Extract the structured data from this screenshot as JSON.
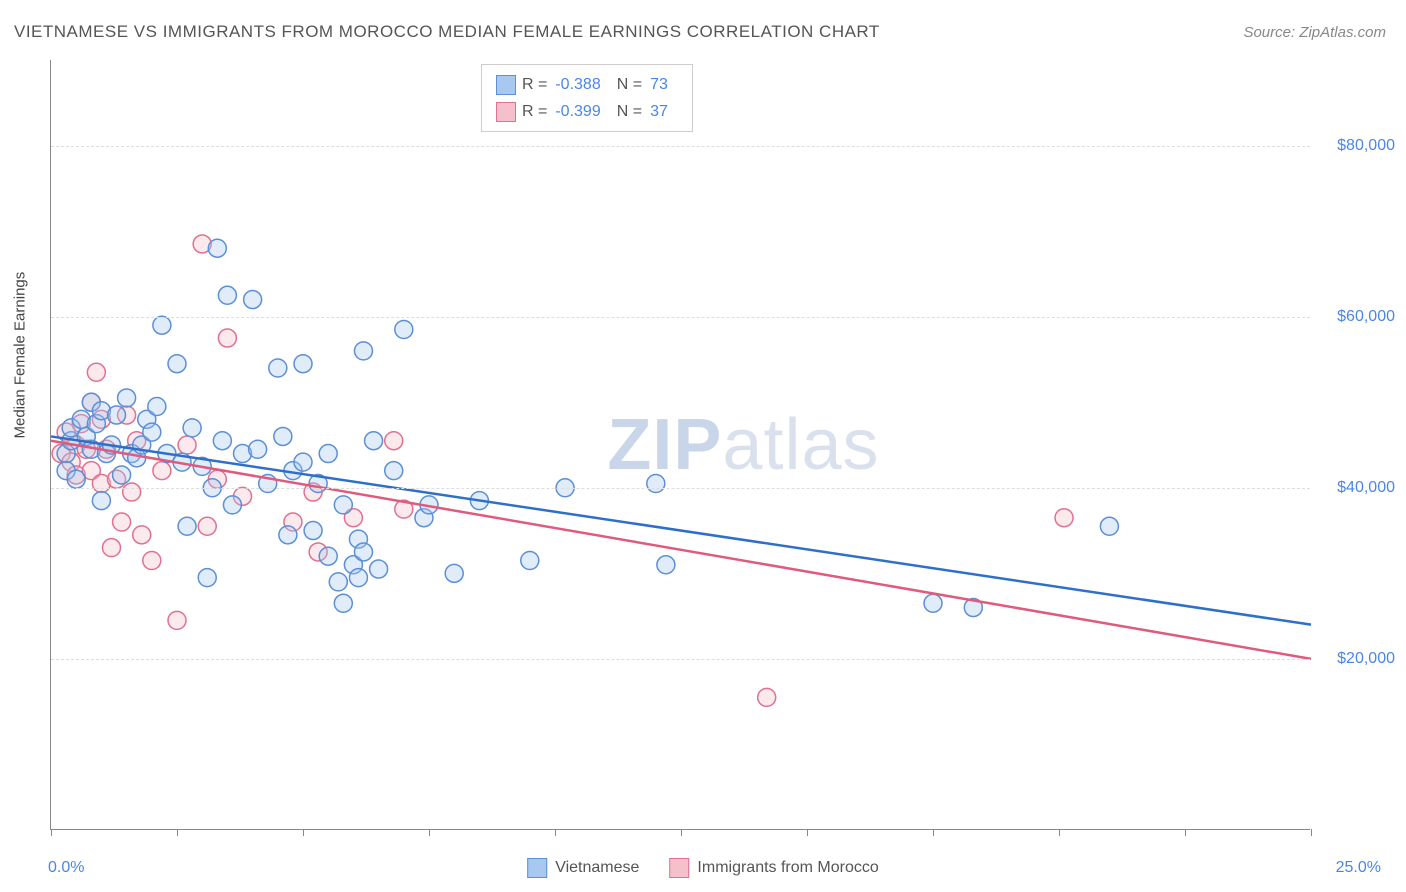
{
  "title": "VIETNAMESE VS IMMIGRANTS FROM MOROCCO MEDIAN FEMALE EARNINGS CORRELATION CHART",
  "source_label": "Source: ZipAtlas.com",
  "watermark_text_bold": "ZIP",
  "watermark_text_light": "atlas",
  "y_axis_label": "Median Female Earnings",
  "chart": {
    "type": "scatter",
    "xlim": [
      0,
      25
    ],
    "ylim": [
      0,
      90000
    ],
    "x_tick_positions": [
      0,
      2.5,
      5,
      7.5,
      10,
      12.5,
      15,
      17.5,
      20,
      22.5,
      25
    ],
    "x_min_label": "0.0%",
    "x_max_label": "25.0%",
    "y_gridlines": [
      20000,
      40000,
      60000,
      80000
    ],
    "y_tick_labels": [
      "$20,000",
      "$40,000",
      "$60,000",
      "$80,000"
    ],
    "grid_color": "#dddddd",
    "background_color": "#ffffff",
    "axis_color": "#888888",
    "label_fontsize": 15,
    "tick_label_color": "#4a86e8",
    "marker_radius": 9,
    "marker_fill_opacity": 0.35,
    "marker_stroke_width": 1.5,
    "trendline_width": 2.5,
    "series": [
      {
        "name": "Vietnamese",
        "color_fill": "#a8c8f0",
        "color_stroke": "#5b8fd6",
        "trend_color": "#2e6fc9",
        "R": "-0.388",
        "N": "73",
        "trend_start": [
          0,
          46000
        ],
        "trend_end": [
          25,
          24000
        ],
        "points": [
          [
            0.3,
            44000
          ],
          [
            0.3,
            42000
          ],
          [
            0.4,
            45500
          ],
          [
            0.4,
            47000
          ],
          [
            0.5,
            41000
          ],
          [
            0.6,
            48000
          ],
          [
            0.7,
            46000
          ],
          [
            0.8,
            44500
          ],
          [
            0.8,
            50000
          ],
          [
            0.9,
            47500
          ],
          [
            1.0,
            38500
          ],
          [
            1.0,
            49000
          ],
          [
            1.1,
            44000
          ],
          [
            1.2,
            45000
          ],
          [
            1.3,
            48500
          ],
          [
            1.4,
            41500
          ],
          [
            1.5,
            50500
          ],
          [
            1.6,
            44000
          ],
          [
            1.7,
            43500
          ],
          [
            1.8,
            45000
          ],
          [
            1.9,
            48000
          ],
          [
            2.0,
            46500
          ],
          [
            2.1,
            49500
          ],
          [
            2.2,
            59000
          ],
          [
            2.3,
            44000
          ],
          [
            2.5,
            54500
          ],
          [
            2.6,
            43000
          ],
          [
            2.7,
            35500
          ],
          [
            2.8,
            47000
          ],
          [
            3.0,
            42500
          ],
          [
            3.1,
            29500
          ],
          [
            3.2,
            40000
          ],
          [
            3.3,
            68000
          ],
          [
            3.4,
            45500
          ],
          [
            3.5,
            62500
          ],
          [
            3.6,
            38000
          ],
          [
            3.8,
            44000
          ],
          [
            4.0,
            62000
          ],
          [
            4.1,
            44500
          ],
          [
            4.3,
            40500
          ],
          [
            4.5,
            54000
          ],
          [
            4.6,
            46000
          ],
          [
            4.7,
            34500
          ],
          [
            4.8,
            42000
          ],
          [
            5.0,
            43000
          ],
          [
            5.0,
            54500
          ],
          [
            5.2,
            35000
          ],
          [
            5.3,
            40500
          ],
          [
            5.5,
            44000
          ],
          [
            5.5,
            32000
          ],
          [
            5.7,
            29000
          ],
          [
            5.8,
            38000
          ],
          [
            5.8,
            26500
          ],
          [
            6.0,
            31000
          ],
          [
            6.1,
            34000
          ],
          [
            6.1,
            29500
          ],
          [
            6.2,
            32500
          ],
          [
            6.2,
            56000
          ],
          [
            6.4,
            45500
          ],
          [
            6.5,
            30500
          ],
          [
            6.8,
            42000
          ],
          [
            7.0,
            58500
          ],
          [
            7.4,
            36500
          ],
          [
            7.5,
            38000
          ],
          [
            8.0,
            30000
          ],
          [
            8.5,
            38500
          ],
          [
            9.5,
            31500
          ],
          [
            10.2,
            40000
          ],
          [
            12.0,
            40500
          ],
          [
            12.2,
            31000
          ],
          [
            17.5,
            26500
          ],
          [
            18.3,
            26000
          ],
          [
            21.0,
            35500
          ]
        ]
      },
      {
        "name": "Immigrants from Morocco",
        "color_fill": "#f4c0cc",
        "color_stroke": "#e0718f",
        "trend_color": "#e05a7d",
        "R": "-0.399",
        "N": "37",
        "trend_start": [
          0,
          45500
        ],
        "trend_end": [
          25,
          20000
        ],
        "points": [
          [
            0.2,
            44000
          ],
          [
            0.3,
            46500
          ],
          [
            0.4,
            43000
          ],
          [
            0.5,
            45000
          ],
          [
            0.5,
            41500
          ],
          [
            0.6,
            47500
          ],
          [
            0.7,
            44500
          ],
          [
            0.8,
            42000
          ],
          [
            0.8,
            50000
          ],
          [
            0.9,
            53500
          ],
          [
            1.0,
            48000
          ],
          [
            1.0,
            40500
          ],
          [
            1.1,
            44500
          ],
          [
            1.2,
            33000
          ],
          [
            1.3,
            41000
          ],
          [
            1.4,
            36000
          ],
          [
            1.5,
            48500
          ],
          [
            1.6,
            39500
          ],
          [
            1.7,
            45500
          ],
          [
            1.8,
            34500
          ],
          [
            2.0,
            31500
          ],
          [
            2.2,
            42000
          ],
          [
            2.5,
            24500
          ],
          [
            2.7,
            45000
          ],
          [
            3.0,
            68500
          ],
          [
            3.1,
            35500
          ],
          [
            3.3,
            41000
          ],
          [
            3.5,
            57500
          ],
          [
            3.8,
            39000
          ],
          [
            4.8,
            36000
          ],
          [
            5.2,
            39500
          ],
          [
            5.3,
            32500
          ],
          [
            6.0,
            36500
          ],
          [
            6.8,
            45500
          ],
          [
            7.0,
            37500
          ],
          [
            14.2,
            15500
          ],
          [
            20.1,
            36500
          ]
        ]
      }
    ]
  },
  "bottom_legend": [
    {
      "label": "Vietnamese",
      "fill": "#a8c8f0",
      "stroke": "#5b8fd6"
    },
    {
      "label": "Immigrants from Morocco",
      "fill": "#f4c0cc",
      "stroke": "#e0718f"
    }
  ]
}
